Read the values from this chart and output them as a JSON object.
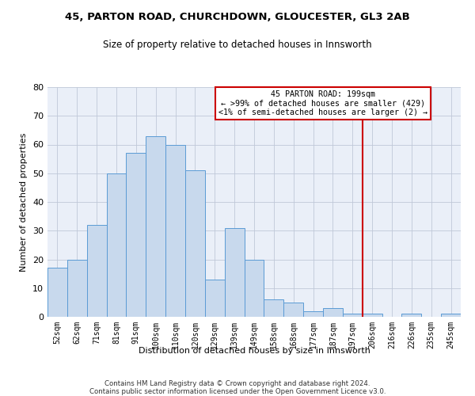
{
  "title": "45, PARTON ROAD, CHURCHDOWN, GLOUCESTER, GL3 2AB",
  "subtitle": "Size of property relative to detached houses in Innsworth",
  "xlabel": "Distribution of detached houses by size in Innsworth",
  "ylabel": "Number of detached properties",
  "bar_labels": [
    "52sqm",
    "62sqm",
    "71sqm",
    "81sqm",
    "91sqm",
    "100sqm",
    "110sqm",
    "120sqm",
    "129sqm",
    "139sqm",
    "149sqm",
    "158sqm",
    "168sqm",
    "177sqm",
    "187sqm",
    "197sqm",
    "206sqm",
    "216sqm",
    "226sqm",
    "235sqm",
    "245sqm"
  ],
  "bar_heights": [
    17,
    20,
    32,
    50,
    57,
    63,
    60,
    51,
    13,
    31,
    20,
    6,
    5,
    2,
    3,
    1,
    1,
    0,
    1,
    0,
    1
  ],
  "bar_color": "#c8d9ed",
  "bar_edge_color": "#5b9bd5",
  "grid_color": "#c0c8d8",
  "background_color": "#eaeff8",
  "vline_x": 15.5,
  "vline_color": "#cc0000",
  "annotation_text": "45 PARTON ROAD: 199sqm\n← >99% of detached houses are smaller (429)\n<1% of semi-detached houses are larger (2) →",
  "annotation_box_color": "#cc0000",
  "footer_line1": "Contains HM Land Registry data © Crown copyright and database right 2024.",
  "footer_line2": "Contains public sector information licensed under the Open Government Licence v3.0.",
  "ylim": [
    0,
    80
  ],
  "yticks": [
    0,
    10,
    20,
    30,
    40,
    50,
    60,
    70,
    80
  ],
  "title_fontsize": 9.5,
  "subtitle_fontsize": 8.5
}
